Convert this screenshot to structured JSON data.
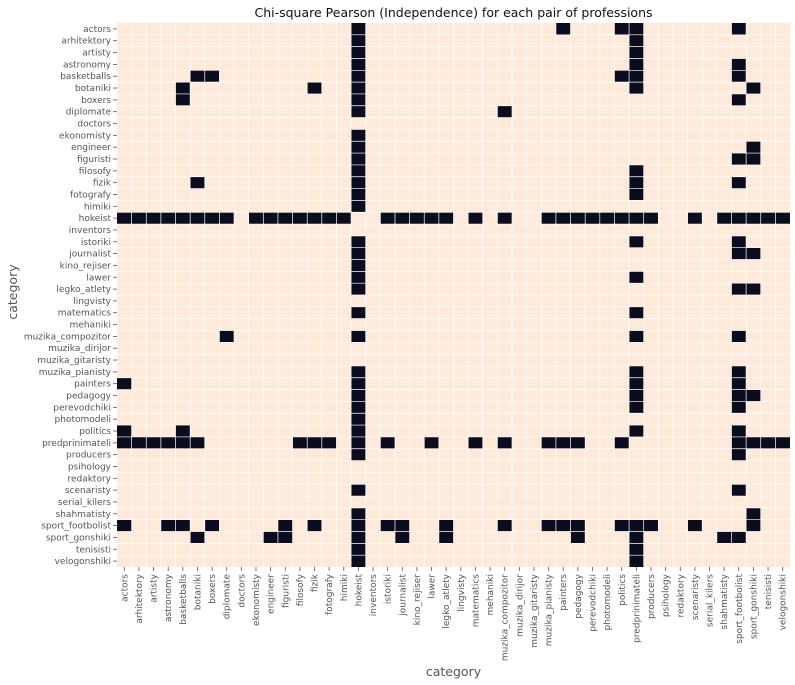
{
  "chart_data": {
    "type": "heatmap",
    "title": "Chi-square Pearson (Independence) for each pair of professions",
    "xlabel": "category",
    "ylabel": "category",
    "categories": [
      "actors",
      "arhitektory",
      "artisty",
      "astronomy",
      "basketballs",
      "botaniki",
      "boxers",
      "diplomate",
      "doctors",
      "ekonomisty",
      "engineer",
      "figuristi",
      "filosofy",
      "fizik",
      "fotografy",
      "himiki",
      "hokeist",
      "inventors",
      "istoriki",
      "journalist",
      "kino_rejiser",
      "lawer",
      "legko_atlety",
      "lingvisty",
      "matematics",
      "mehaniki",
      "muzika_compozitor",
      "muzika_dirijor",
      "muzika_gitaristy",
      "muzika_pianisty",
      "painters",
      "pedagogy",
      "perevodchiki",
      "photomodeli",
      "politics",
      "predprinimateli",
      "producers",
      "psihology",
      "redaktory",
      "scenaristy",
      "serial_kilers",
      "shahmatisty",
      "sport_footbolist",
      "sport_gonshiki",
      "tenisisti",
      "velogonshiki"
    ],
    "colors": {
      "background": "#fdeadb",
      "marked": "#0b0c1e",
      "grid": "#ffffff"
    },
    "grid": true,
    "marked_cells": {
      "actors": [
        "hokeist",
        "painters",
        "politics",
        "predprinimateli",
        "sport_footbolist"
      ],
      "arhitektory": [
        "hokeist",
        "predprinimateli"
      ],
      "artisty": [
        "hokeist",
        "predprinimateli"
      ],
      "astronomy": [
        "hokeist",
        "predprinimateli",
        "sport_footbolist"
      ],
      "basketballs": [
        "botaniki",
        "boxers",
        "hokeist",
        "politics",
        "predprinimateli",
        "sport_footbolist"
      ],
      "botaniki": [
        "basketballs",
        "fizik",
        "hokeist",
        "predprinimateli",
        "sport_gonshiki"
      ],
      "boxers": [
        "basketballs",
        "hokeist",
        "sport_footbolist"
      ],
      "diplomate": [
        "hokeist",
        "muzika_compozitor"
      ],
      "doctors": [],
      "ekonomisty": [
        "hokeist"
      ],
      "engineer": [
        "hokeist",
        "sport_gonshiki"
      ],
      "figuristi": [
        "hokeist",
        "sport_footbolist",
        "sport_gonshiki"
      ],
      "filosofy": [
        "hokeist",
        "predprinimateli"
      ],
      "fizik": [
        "botaniki",
        "hokeist",
        "predprinimateli",
        "sport_footbolist"
      ],
      "fotografy": [
        "hokeist",
        "predprinimateli"
      ],
      "himiki": [
        "hokeist"
      ],
      "hokeist": [
        "actors",
        "arhitektory",
        "artisty",
        "astronomy",
        "basketballs",
        "botaniki",
        "boxers",
        "diplomate",
        "ekonomisty",
        "engineer",
        "figuristi",
        "filosofy",
        "fizik",
        "fotografy",
        "himiki",
        "istoriki",
        "journalist",
        "kino_rejiser",
        "lawer",
        "legko_atlety",
        "matematics",
        "muzika_compozitor",
        "muzika_pianisty",
        "painters",
        "pedagogy",
        "perevodchiki",
        "photomodeli",
        "politics",
        "predprinimateli",
        "producers",
        "scenaristy",
        "shahmatisty",
        "sport_footbolist",
        "sport_gonshiki",
        "tenisisti",
        "velogonshiki"
      ],
      "inventors": [],
      "istoriki": [
        "hokeist",
        "predprinimateli",
        "sport_footbolist"
      ],
      "journalist": [
        "hokeist",
        "sport_footbolist",
        "sport_gonshiki"
      ],
      "kino_rejiser": [
        "hokeist"
      ],
      "lawer": [
        "hokeist",
        "predprinimateli"
      ],
      "legko_atlety": [
        "hokeist",
        "sport_footbolist",
        "sport_gonshiki"
      ],
      "lingvisty": [],
      "matematics": [
        "hokeist",
        "predprinimateli"
      ],
      "mehaniki": [],
      "muzika_compozitor": [
        "diplomate",
        "hokeist",
        "predprinimateli",
        "sport_footbolist"
      ],
      "muzika_dirijor": [],
      "muzika_gitaristy": [],
      "muzika_pianisty": [
        "hokeist",
        "predprinimateli",
        "sport_footbolist"
      ],
      "painters": [
        "actors",
        "hokeist",
        "predprinimateli",
        "sport_footbolist"
      ],
      "pedagogy": [
        "hokeist",
        "predprinimateli",
        "sport_footbolist",
        "sport_gonshiki"
      ],
      "perevodchiki": [
        "hokeist",
        "predprinimateli",
        "sport_footbolist"
      ],
      "photomodeli": [
        "hokeist"
      ],
      "politics": [
        "actors",
        "basketballs",
        "hokeist",
        "predprinimateli",
        "sport_footbolist"
      ],
      "predprinimateli": [
        "actors",
        "arhitektory",
        "artisty",
        "astronomy",
        "basketballs",
        "botaniki",
        "filosofy",
        "fizik",
        "fotografy",
        "hokeist",
        "istoriki",
        "lawer",
        "matematics",
        "muzika_compozitor",
        "muzika_pianisty",
        "painters",
        "pedagogy",
        "politics",
        "sport_footbolist",
        "sport_gonshiki",
        "tenisisti",
        "velogonshiki"
      ],
      "producers": [
        "hokeist",
        "sport_footbolist"
      ],
      "psihology": [],
      "redaktory": [],
      "scenaristy": [
        "hokeist",
        "sport_footbolist"
      ],
      "serial_kilers": [],
      "shahmatisty": [
        "hokeist",
        "sport_gonshiki"
      ],
      "sport_footbolist": [
        "actors",
        "astronomy",
        "basketballs",
        "boxers",
        "figuristi",
        "fizik",
        "hokeist",
        "istoriki",
        "journalist",
        "legko_atlety",
        "muzika_compozitor",
        "muzika_pianisty",
        "painters",
        "pedagogy",
        "politics",
        "predprinimateli",
        "producers",
        "scenaristy",
        "sport_gonshiki"
      ],
      "sport_gonshiki": [
        "botaniki",
        "engineer",
        "figuristi",
        "hokeist",
        "journalist",
        "legko_atlety",
        "pedagogy",
        "predprinimateli",
        "shahmatisty",
        "sport_footbolist"
      ],
      "tenisisti": [
        "hokeist",
        "predprinimateli"
      ],
      "velogonshiki": [
        "hokeist",
        "predprinimateli"
      ]
    }
  }
}
